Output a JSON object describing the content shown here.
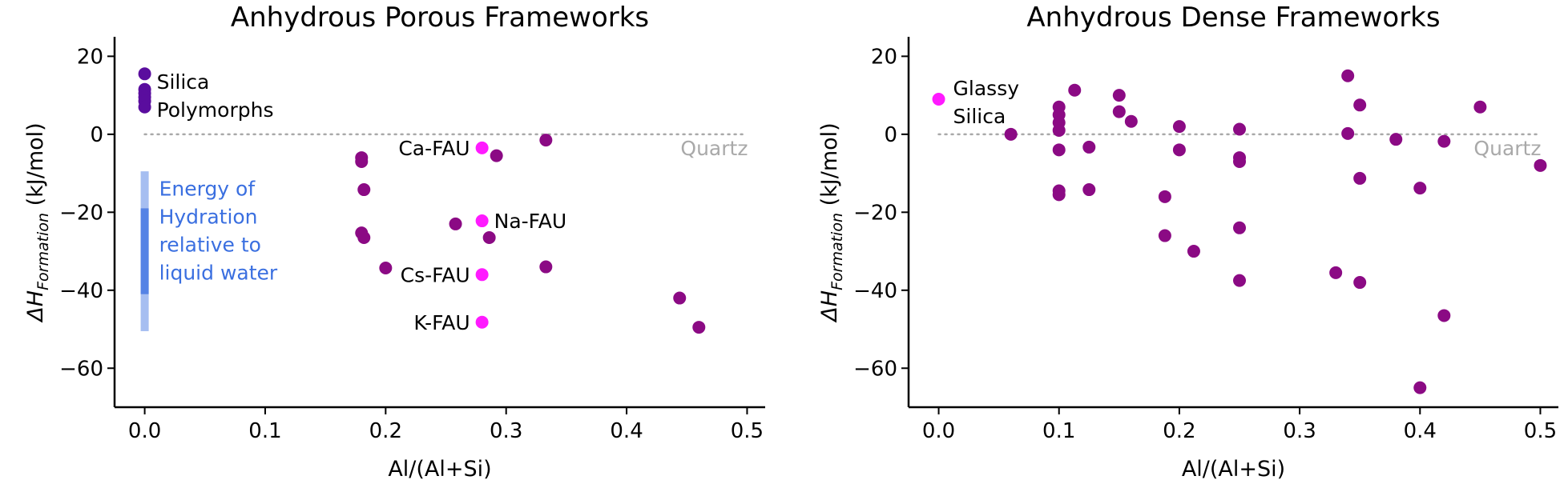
{
  "colors": {
    "framework": "#8b0a84",
    "highlight": "#ff1aff",
    "silica": "#5a0d9e",
    "reference_line": "#a9a9a9",
    "hydration": "#3a6fe0"
  },
  "chart_data": [
    {
      "type": "scatter",
      "title": "Anhydrous Porous Frameworks",
      "xlabel": "Al/(Al+Si)",
      "ylabel_main": "ΔH",
      "ylabel_sub": "Formation",
      "ylabel_unit": "(kJ/mol)",
      "xlim": [
        -0.025,
        0.515
      ],
      "ylim": [
        -70,
        25
      ],
      "xticks": [
        0.0,
        0.1,
        0.2,
        0.3,
        0.4,
        0.5
      ],
      "xtick_labels": [
        "0.0",
        "0.1",
        "0.2",
        "0.3",
        "0.4",
        "0.5"
      ],
      "yticks": [
        20,
        0,
        -20,
        -40,
        -60
      ],
      "ytick_labels": [
        "20",
        "0",
        "−20",
        "−40",
        "−60"
      ],
      "reference_line": {
        "y": 0,
        "label": "Quartz"
      },
      "silica_points": [
        {
          "x": 0.0,
          "y": 15.5
        },
        {
          "x": 0.0,
          "y": 11.5
        },
        {
          "x": 0.0,
          "y": 10.5
        },
        {
          "x": 0.0,
          "y": 9.5
        },
        {
          "x": 0.0,
          "y": 8.5
        },
        {
          "x": 0.0,
          "y": 7.0
        }
      ],
      "silica_label": [
        "Silica",
        "Polymorphs"
      ],
      "framework_points": [
        {
          "x": 0.333,
          "y": -1.5
        },
        {
          "x": 0.292,
          "y": -5.5
        },
        {
          "x": 0.18,
          "y": -6.0
        },
        {
          "x": 0.18,
          "y": -7.0
        },
        {
          "x": 0.182,
          "y": -14.2
        },
        {
          "x": 0.258,
          "y": -23.0
        },
        {
          "x": 0.18,
          "y": -25.3
        },
        {
          "x": 0.182,
          "y": -26.5
        },
        {
          "x": 0.286,
          "y": -26.5
        },
        {
          "x": 0.2,
          "y": -34.3
        },
        {
          "x": 0.333,
          "y": -34.0
        },
        {
          "x": 0.444,
          "y": -42.0
        },
        {
          "x": 0.46,
          "y": -49.5
        }
      ],
      "highlight_points": [
        {
          "x": 0.28,
          "y": -3.5,
          "label": "Ca-FAU",
          "side": "left"
        },
        {
          "x": 0.28,
          "y": -22.2,
          "label": "Na-FAU",
          "side": "right"
        },
        {
          "x": 0.28,
          "y": -36.0,
          "label": "Cs-FAU",
          "side": "left"
        },
        {
          "x": 0.28,
          "y": -48.2,
          "label": "K-FAU",
          "side": "left"
        }
      ],
      "hydration_band": {
        "x": 0.0,
        "light_range": [
          -50.5,
          -9.5
        ],
        "dark_range": [
          -41.0,
          -19.0
        ],
        "label": [
          "Energy of",
          "Hydration",
          "relative to",
          "liquid water"
        ]
      }
    },
    {
      "type": "scatter",
      "title": "Anhydrous Dense Frameworks",
      "xlabel": "Al/(Al+Si)",
      "ylabel_main": "ΔH",
      "ylabel_sub": "Formation",
      "ylabel_unit": "(kJ/mol)",
      "xlim": [
        -0.025,
        0.515
      ],
      "ylim": [
        -70,
        25
      ],
      "xticks": [
        0.0,
        0.1,
        0.2,
        0.3,
        0.4,
        0.5
      ],
      "xtick_labels": [
        "0.0",
        "0.1",
        "0.2",
        "0.3",
        "0.4",
        "0.5"
      ],
      "yticks": [
        20,
        0,
        -20,
        -40,
        -60
      ],
      "ytick_labels": [
        "20",
        "0",
        "−20",
        "−40",
        "−60"
      ],
      "reference_line": {
        "y": 0,
        "label": "Quartz"
      },
      "highlight_points": [
        {
          "x": 0.0,
          "y": 9.0,
          "label": [
            "Glassy",
            "Silica"
          ]
        }
      ],
      "framework_points": [
        {
          "x": 0.06,
          "y": 0.0
        },
        {
          "x": 0.1,
          "y": 7.0
        },
        {
          "x": 0.1,
          "y": 5.0
        },
        {
          "x": 0.1,
          "y": 3.0
        },
        {
          "x": 0.1,
          "y": 1.0
        },
        {
          "x": 0.1,
          "y": -4.0
        },
        {
          "x": 0.1,
          "y": -14.5
        },
        {
          "x": 0.1,
          "y": -15.5
        },
        {
          "x": 0.113,
          "y": 11.3
        },
        {
          "x": 0.125,
          "y": -3.3
        },
        {
          "x": 0.125,
          "y": -14.2
        },
        {
          "x": 0.15,
          "y": 10.0
        },
        {
          "x": 0.15,
          "y": 5.8
        },
        {
          "x": 0.16,
          "y": 3.3
        },
        {
          "x": 0.188,
          "y": -16.0
        },
        {
          "x": 0.188,
          "y": -26.0
        },
        {
          "x": 0.2,
          "y": 2.0
        },
        {
          "x": 0.2,
          "y": -4.0
        },
        {
          "x": 0.212,
          "y": -30.0
        },
        {
          "x": 0.25,
          "y": 1.3
        },
        {
          "x": 0.25,
          "y": -6.0
        },
        {
          "x": 0.25,
          "y": -7.0
        },
        {
          "x": 0.25,
          "y": -24.0
        },
        {
          "x": 0.25,
          "y": -37.5
        },
        {
          "x": 0.33,
          "y": -35.5
        },
        {
          "x": 0.34,
          "y": 15.0
        },
        {
          "x": 0.34,
          "y": 0.2
        },
        {
          "x": 0.35,
          "y": 7.5
        },
        {
          "x": 0.35,
          "y": -11.3
        },
        {
          "x": 0.35,
          "y": -38.0
        },
        {
          "x": 0.38,
          "y": -1.3
        },
        {
          "x": 0.4,
          "y": -13.8
        },
        {
          "x": 0.4,
          "y": -65.0
        },
        {
          "x": 0.42,
          "y": -1.8
        },
        {
          "x": 0.42,
          "y": -46.5
        },
        {
          "x": 0.45,
          "y": 7.0
        },
        {
          "x": 0.5,
          "y": -8.0
        }
      ]
    }
  ]
}
